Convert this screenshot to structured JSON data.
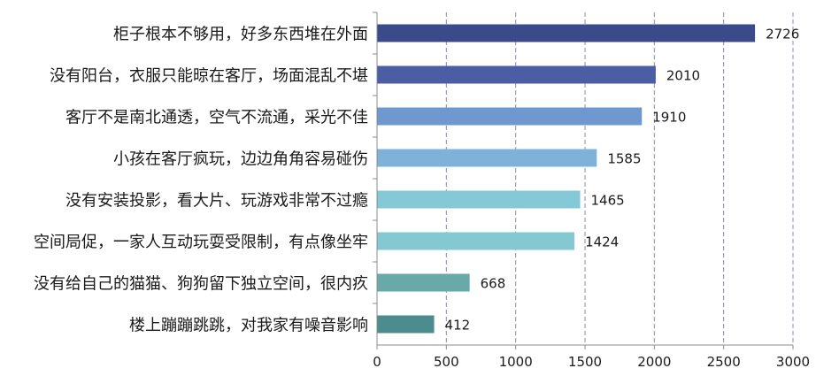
{
  "chart_data": {
    "type": "bar",
    "orientation": "horizontal",
    "title": "",
    "xlabel": "",
    "ylabel": "",
    "xlim": [
      0,
      3000
    ],
    "x_ticks": [
      "0",
      "500",
      "1000",
      "1500",
      "2000",
      "2500",
      "3000"
    ],
    "grid": "vertical dashed",
    "categories": [
      "柜子根本不够用，好多东西堆在外面",
      "没有阳台，衣服只能晾在客厅，场面混乱不堪",
      "客厅不是南北通透，空气不流通，采光不佳",
      "小孩在客厅疯玩，边边角角容易碰伤",
      "没有安装投影，看大片、玩游戏非常不过瘾",
      "空间局促，一家人互动玩耍受限制，有点像坐牢",
      "没有给自己的猫猫、狗狗留下独立空间，很内疚",
      "楼上蹦蹦跳跳，对我家有噪音影响"
    ],
    "values": [
      2726,
      2010,
      1910,
      1585,
      1465,
      1424,
      668,
      412
    ],
    "value_labels": [
      "2726",
      "2010",
      "1910",
      "1585",
      "1465",
      "1424",
      "668",
      "412"
    ],
    "bar_colors": [
      "#3b4a8a",
      "#4b5da3",
      "#6f98d0",
      "#7eb2d8",
      "#85c8d8",
      "#84c9d2",
      "#6aa9aa",
      "#4c8c8e"
    ]
  }
}
